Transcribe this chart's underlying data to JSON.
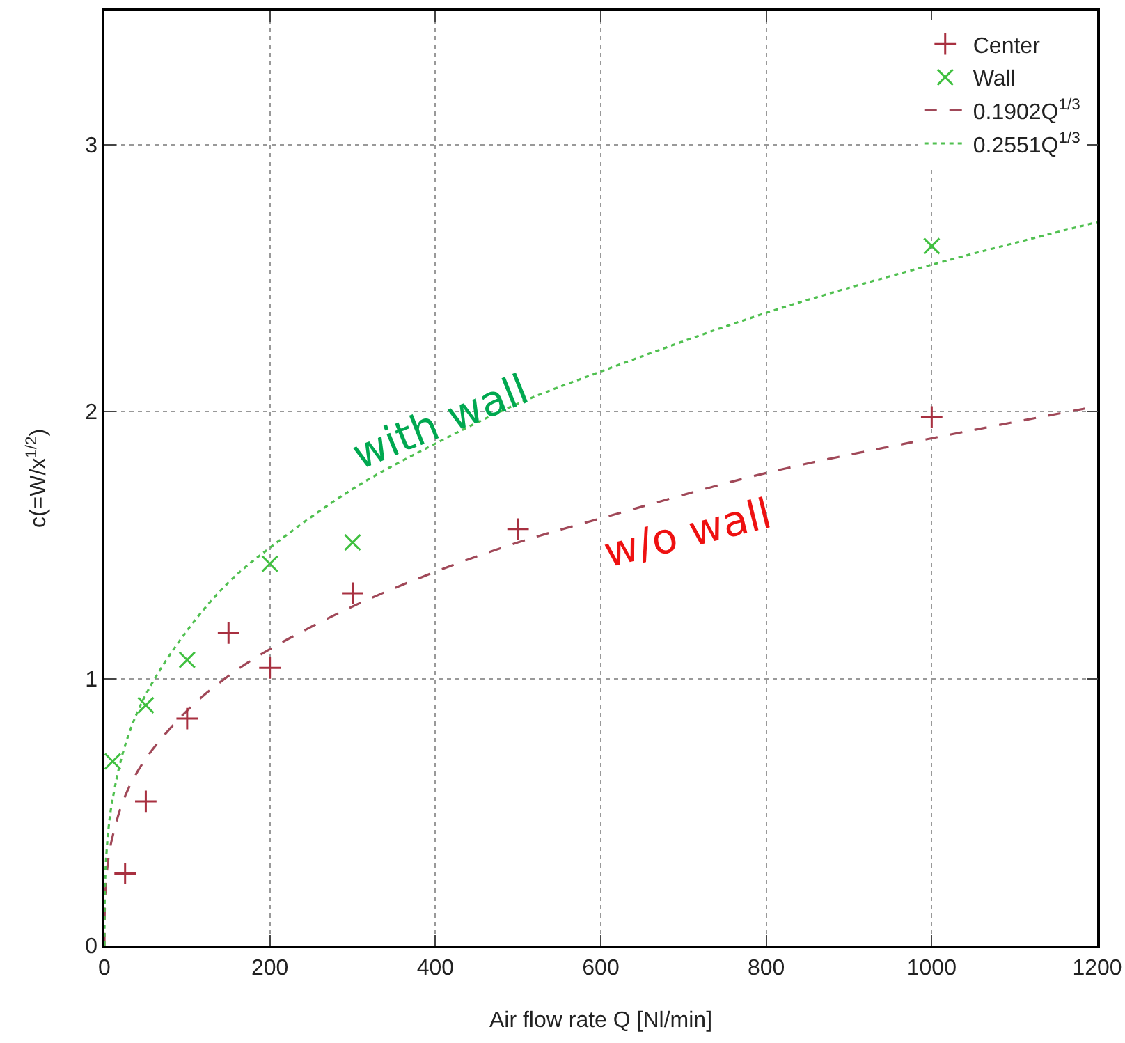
{
  "chart_data": {
    "type": "scatter",
    "xlabel": "Air flow rate Q [Nl/min]",
    "ylabel": "c(=W/x$^{1/2}$)",
    "xlim": [
      0,
      1200
    ],
    "ylim": [
      0,
      3.5
    ],
    "xticks": [
      0,
      200,
      400,
      600,
      800,
      1000,
      1200
    ],
    "yticks": [
      0,
      1,
      2,
      3
    ],
    "grid": true,
    "legend": "top right",
    "series": [
      {
        "name": "Center",
        "marker": "cross",
        "color": "#a83040",
        "x": [
          25,
          50,
          100,
          150,
          200,
          300,
          500,
          1000
        ],
        "values": [
          0.27,
          0.54,
          0.85,
          1.17,
          1.04,
          1.32,
          1.56,
          1.98
        ]
      },
      {
        "name": "Wall",
        "marker": "x",
        "color": "#40c040",
        "x": [
          10,
          50,
          100,
          200,
          300,
          1000
        ],
        "values": [
          0.69,
          0.9,
          1.07,
          1.43,
          1.51,
          2.62
        ]
      },
      {
        "name": "0.1902Q$^{1/3}$",
        "type": "line",
        "marker": "none",
        "line_style": "dashed",
        "color": "#a04858",
        "x": [
          0,
          1,
          5,
          10,
          25,
          50,
          100,
          150,
          200,
          300,
          400,
          500,
          600,
          800,
          1000,
          1200
        ],
        "values": [
          0,
          0.19,
          0.33,
          0.41,
          0.56,
          0.7,
          0.88,
          1.01,
          1.11,
          1.27,
          1.4,
          1.51,
          1.6,
          1.77,
          1.9,
          2.02
        ]
      },
      {
        "name": "0.2551Q$^{1/3}$",
        "type": "line",
        "marker": "none",
        "line_style": "dotted",
        "color": "#50c050",
        "x": [
          0,
          1,
          5,
          10,
          25,
          50,
          100,
          150,
          200,
          300,
          400,
          500,
          600,
          800,
          1000,
          1200
        ],
        "values": [
          0,
          0.26,
          0.44,
          0.55,
          0.75,
          0.94,
          1.18,
          1.36,
          1.49,
          1.71,
          1.88,
          2.03,
          2.15,
          2.37,
          2.55,
          2.71
        ]
      }
    ],
    "annotations": [
      "with wall",
      "w/o wall"
    ]
  }
}
